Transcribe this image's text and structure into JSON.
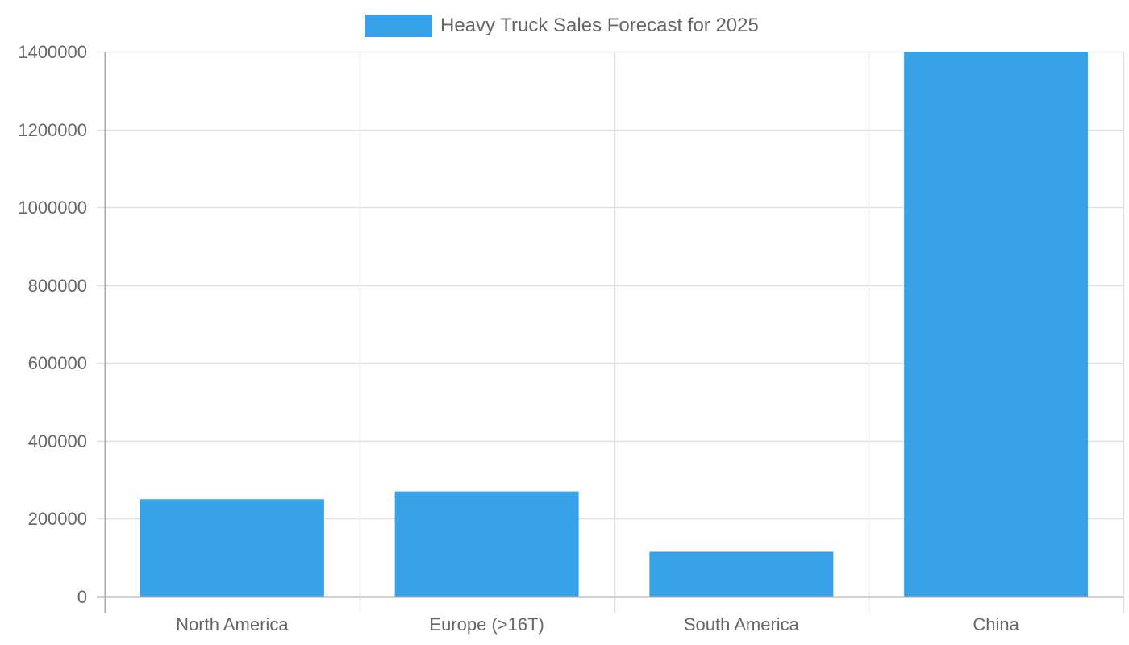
{
  "legend": {
    "label": "Heavy Truck Sales Forecast for 2025",
    "color": "#38a2e8"
  },
  "axes": {
    "y_ticks": [
      "0",
      "200000",
      "400000",
      "600000",
      "800000",
      "1000000",
      "1200000",
      "1400000"
    ],
    "x_ticks": [
      "North America",
      "Europe (>16T)",
      "South America",
      "China"
    ]
  },
  "colors": {
    "bar": "#38a2e8",
    "grid": "#e0e0e0",
    "axis": "#aaaaaa",
    "text": "#666666"
  },
  "chart_data": {
    "type": "bar",
    "title": "",
    "categories": [
      "North America",
      "Europe (>16T)",
      "South America",
      "China"
    ],
    "series": [
      {
        "name": "Heavy Truck Sales Forecast for 2025",
        "values": [
          250000,
          270000,
          115000,
          1400000
        ]
      }
    ],
    "xlabel": "",
    "ylabel": "",
    "ylim": [
      0,
      1400000
    ],
    "grid": true,
    "legend_position": "top"
  }
}
